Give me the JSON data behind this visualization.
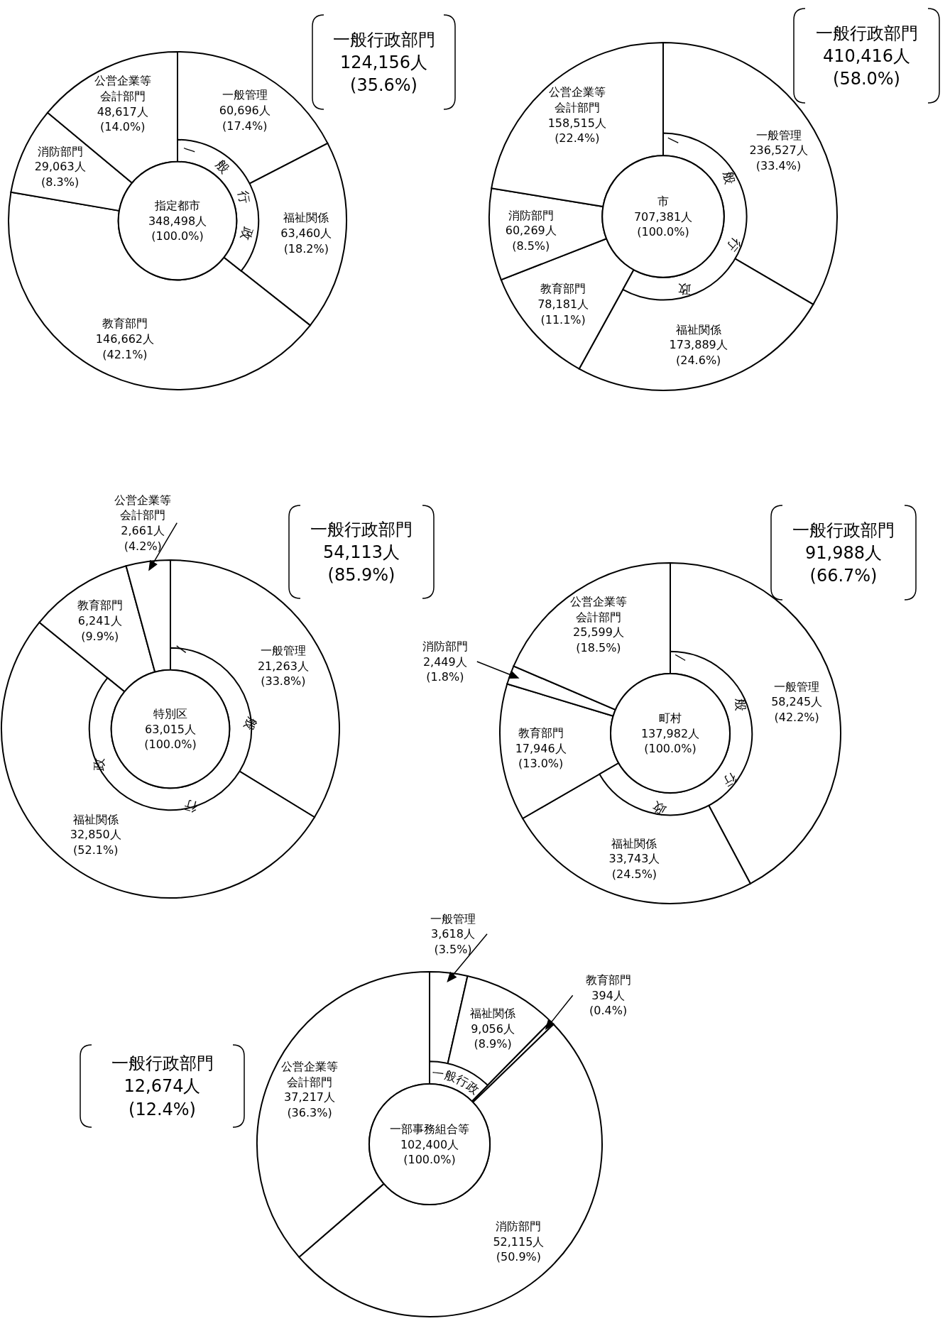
{
  "chart_data": [
    {
      "type": "donut",
      "title": "指定都市",
      "subtitle": "348,498人 (100.0%)",
      "categories": [
        "一般管理",
        "福祉関係",
        "教育部門",
        "消防部門",
        "公営企業等会計部門"
      ],
      "values": [
        60696,
        63460,
        146662,
        29063,
        48617
      ],
      "colors": [
        "#ffffff",
        "#ffffff",
        "#ffffff",
        "#ffffff",
        "#ffffff"
      ],
      "value_labels": [
        "60,696人 (17.4%)",
        "63,460人 (18.2%)",
        "146,662人 (42.1%)",
        "29,063人 (8.3%)",
        "48,617人 (14.0%)"
      ],
      "annotations": [
        "一般行政部門 124,156人 (35.6%)",
        "一般行政"
      ]
    },
    {
      "type": "donut",
      "title": "市",
      "subtitle": "707,381人 (100.0%)",
      "categories": [
        "一般管理",
        "福祉関係",
        "教育部門",
        "消防部門",
        "公営企業等会計部門"
      ],
      "values": [
        236527,
        173889,
        78181,
        60269,
        158515
      ],
      "colors": [
        "#ffffff",
        "#ffffff",
        "#ffffff",
        "#ffffff",
        "#ffffff"
      ],
      "value_labels": [
        "236,527人 (33.4%)",
        "173,889人 (24.6%)",
        "78,181人 (11.1%)",
        "60,269人 (8.5%)",
        "158,515人 (22.4%)"
      ],
      "annotations": [
        "一般行政部門 410,416人 (58.0%)",
        "一般行政"
      ]
    },
    {
      "type": "donut",
      "title": "特別区",
      "subtitle": "63,015人 (100.0%)",
      "categories": [
        "一般管理",
        "福祉関係",
        "教育部門",
        "公営企業等会計部門"
      ],
      "values": [
        21263,
        32850,
        6241,
        2661
      ],
      "colors": [
        "#ffffff",
        "#ffffff",
        "#ffffff",
        "#ffffff"
      ],
      "value_labels": [
        "21,263人 (33.8%)",
        "32,850人 (52.1%)",
        "6,241人 (9.9%)",
        "2,661人 (4.2%)"
      ],
      "annotations": [
        "一般行政部門 54,113人 (85.9%)",
        "一般行政"
      ]
    },
    {
      "type": "donut",
      "title": "町村",
      "subtitle": "137,982人 (100.0%)",
      "categories": [
        "一般管理",
        "福祉関係",
        "教育部門",
        "消防部門",
        "公営企業等会計部門"
      ],
      "values": [
        58245,
        33743,
        17946,
        2449,
        25599
      ],
      "colors": [
        "#ffffff",
        "#ffffff",
        "#ffffff",
        "#ffffff",
        "#ffffff"
      ],
      "value_labels": [
        "58,245人 (42.2%)",
        "33,743人 (24.5%)",
        "17,946人 (13.0%)",
        "2,449人 (1.8%)",
        "25,599人 (18.5%)"
      ],
      "annotations": [
        "一般行政部門 91,988人 (66.7%)",
        "一般行政"
      ]
    },
    {
      "type": "donut",
      "title": "一部事務組合等",
      "subtitle": "102,400人 (100.0%)",
      "categories": [
        "一般管理",
        "福祉関係",
        "教育部門",
        "消防部門",
        "公営企業等会計部門"
      ],
      "values": [
        3618,
        9056,
        394,
        52115,
        37217
      ],
      "colors": [
        "#ffffff",
        "#ffffff",
        "#ffffff",
        "#ffffff",
        "#ffffff"
      ],
      "value_labels": [
        "3,618人 (3.5%)",
        "9,056人 (8.9%)",
        "394人 (0.4%)",
        "52,115人 (50.9%)",
        "37,217人 (36.3%)"
      ],
      "annotations": [
        "一般行政部門 12,674人 (12.4%)",
        "一般行政"
      ]
    }
  ]
}
